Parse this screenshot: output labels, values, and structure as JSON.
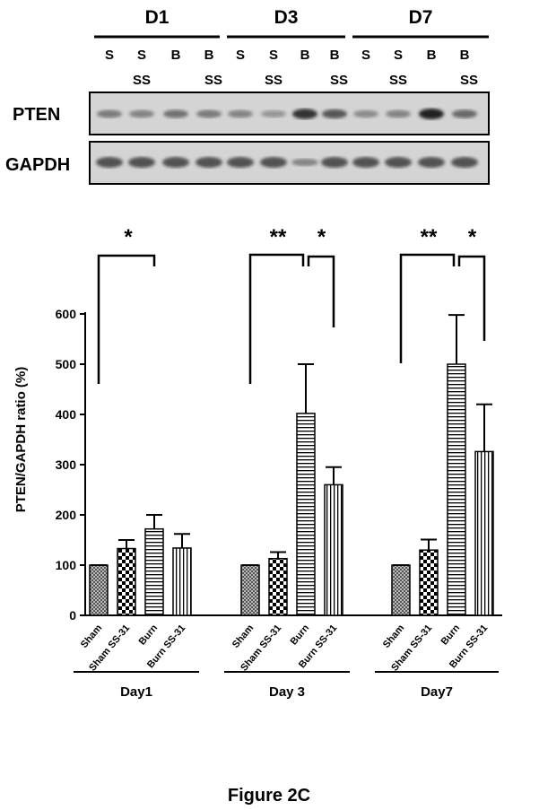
{
  "blot": {
    "groups": [
      {
        "label": "D1",
        "lanes": [
          {
            "top": "S"
          },
          {
            "top": "S",
            "bottom": "SS"
          },
          {
            "top": "B"
          },
          {
            "top": "B",
            "bottom": "SS"
          }
        ]
      },
      {
        "label": "D3",
        "lanes": [
          {
            "top": "S"
          },
          {
            "top": "S",
            "bottom": "SS"
          },
          {
            "top": "B"
          },
          {
            "top": "B",
            "bottom": "SS"
          }
        ]
      },
      {
        "label": "D7",
        "lanes": [
          {
            "top": "S"
          },
          {
            "top": "S",
            "bottom": "SS"
          },
          {
            "top": "B"
          },
          {
            "top": "B",
            "bottom": "SS"
          }
        ]
      }
    ],
    "rows": [
      "PTEN",
      "GAPDH"
    ]
  },
  "chart_data": {
    "type": "bar",
    "y_label": "PTEN/GAPDH ratio (%)",
    "categories": [
      "Sham",
      "Sham SS-31",
      "Burn",
      "Burn  SS-31"
    ],
    "groups": [
      {
        "name": "Day1",
        "values": [
          100,
          133,
          172,
          134
        ],
        "errors": [
          0,
          17,
          28,
          28
        ],
        "stars": [
          "*"
        ]
      },
      {
        "name": "Day 3",
        "values": [
          100,
          113,
          402,
          260
        ],
        "errors": [
          0,
          13,
          98,
          35
        ],
        "stars": [
          "**",
          "*"
        ]
      },
      {
        "name": "Day7",
        "values": [
          100,
          130,
          500,
          326
        ],
        "errors": [
          0,
          21,
          98,
          94
        ],
        "stars": [
          "**",
          "*"
        ]
      }
    ],
    "ylim": [
      0,
      600
    ],
    "yticks": [
      0,
      100,
      200,
      300,
      400,
      500,
      600
    ]
  },
  "caption": "Figure 2C"
}
